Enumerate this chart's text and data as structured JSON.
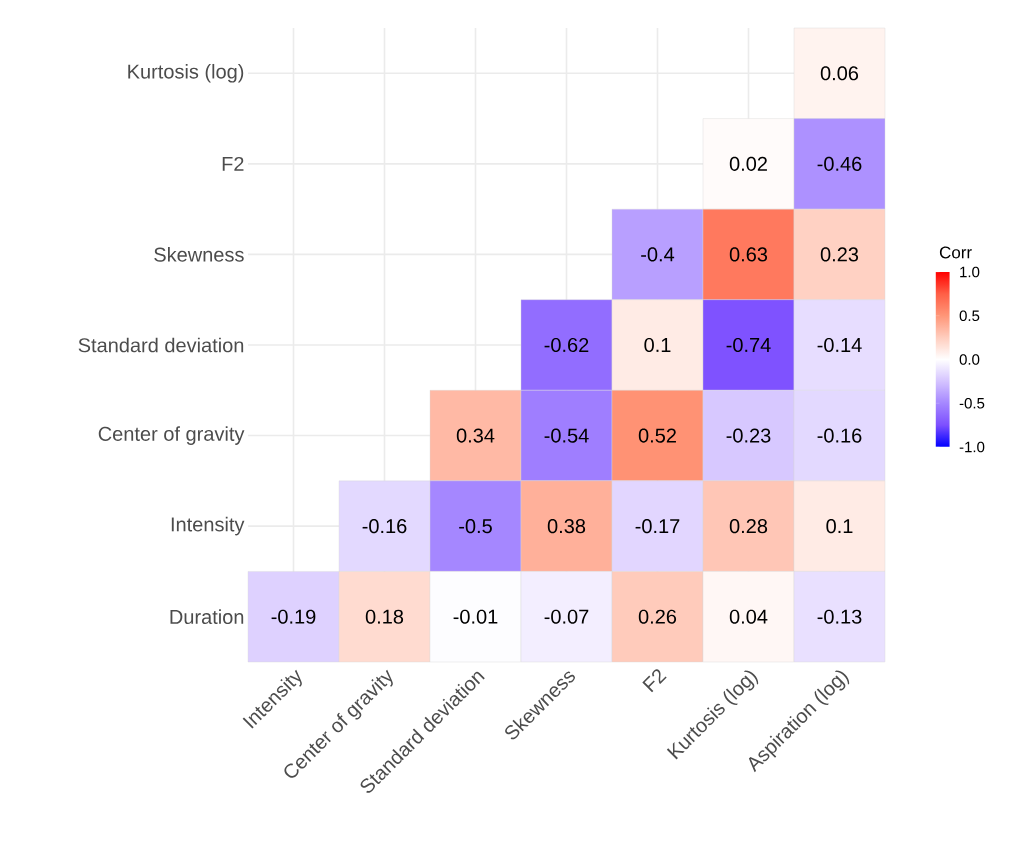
{
  "chart_data": {
    "type": "heatmap",
    "categories": [
      "Intensity",
      "Center of gravity",
      "Standard deviation",
      "Skewness",
      "F2",
      "Kurtosis (log)",
      "Aspiration (log)"
    ],
    "y_categories": [
      "Kurtosis (log)",
      "F2",
      "Skewness",
      "Standard deviation",
      "Center of gravity",
      "Intensity",
      "Duration"
    ],
    "cells": [
      [
        null,
        null,
        null,
        null,
        null,
        null,
        0.06
      ],
      [
        null,
        null,
        null,
        null,
        null,
        0.02,
        -0.46
      ],
      [
        null,
        null,
        null,
        null,
        -0.4,
        0.63,
        0.23
      ],
      [
        null,
        null,
        null,
        -0.62,
        0.1,
        -0.74,
        -0.14
      ],
      [
        null,
        null,
        0.34,
        -0.54,
        0.52,
        -0.23,
        -0.16
      ],
      [
        null,
        -0.16,
        -0.5,
        0.38,
        -0.17,
        0.28,
        0.1
      ],
      [
        -0.19,
        0.18,
        -0.01,
        -0.07,
        0.26,
        0.04,
        -0.13
      ]
    ],
    "clim": [
      -1,
      1
    ],
    "cticks": [
      {
        "value": -1,
        "label": "-1.0"
      },
      {
        "value": -0.5,
        "label": "-0.5"
      },
      {
        "value": 0,
        "label": "0.0"
      },
      {
        "value": 0.5,
        "label": "0.5"
      },
      {
        "value": 1,
        "label": "1.0"
      }
    ],
    "clabel": "Corr",
    "data_labels": true,
    "grid": true
  }
}
